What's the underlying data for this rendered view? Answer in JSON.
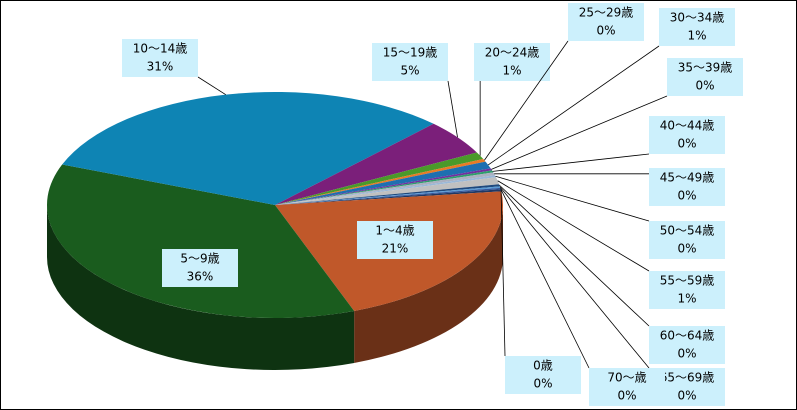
{
  "chart_data": {
    "type": "pie",
    "categories": [
      "0歳",
      "1～4歳",
      "5～9歳",
      "10～14歳",
      "15～19歳",
      "20～24歳",
      "25～29歳",
      "30～34歳",
      "35～39歳",
      "40～44歳",
      "45～49歳",
      "50～54歳",
      "55～59歳",
      "60～64歳",
      "65～69歳",
      "70～歳"
    ],
    "values": [
      0.3,
      21,
      36,
      31,
      5,
      1,
      0.4,
      1,
      0.3,
      0.3,
      0.4,
      0.3,
      1,
      0.3,
      0.2,
      0.2
    ],
    "value_labels": [
      "0%",
      "21%",
      "36%",
      "31%",
      "5%",
      "1%",
      "0%",
      "1%",
      "0%",
      "0%",
      "0%",
      "0%",
      "1%",
      "0%",
      "0%",
      "0%"
    ],
    "colors": [
      "#1f3864",
      "#c0582a",
      "#1a5c1e",
      "#0e84b4",
      "#7b1f7a",
      "#4a9a2a",
      "#e87b25",
      "#1e6fb0",
      "#7030a0",
      "#2e9e6b",
      "#aab0c0",
      "#9ab8d8",
      "#c0c0c0",
      "#1f497d",
      "#5b9bd5",
      "#335599"
    ]
  }
}
